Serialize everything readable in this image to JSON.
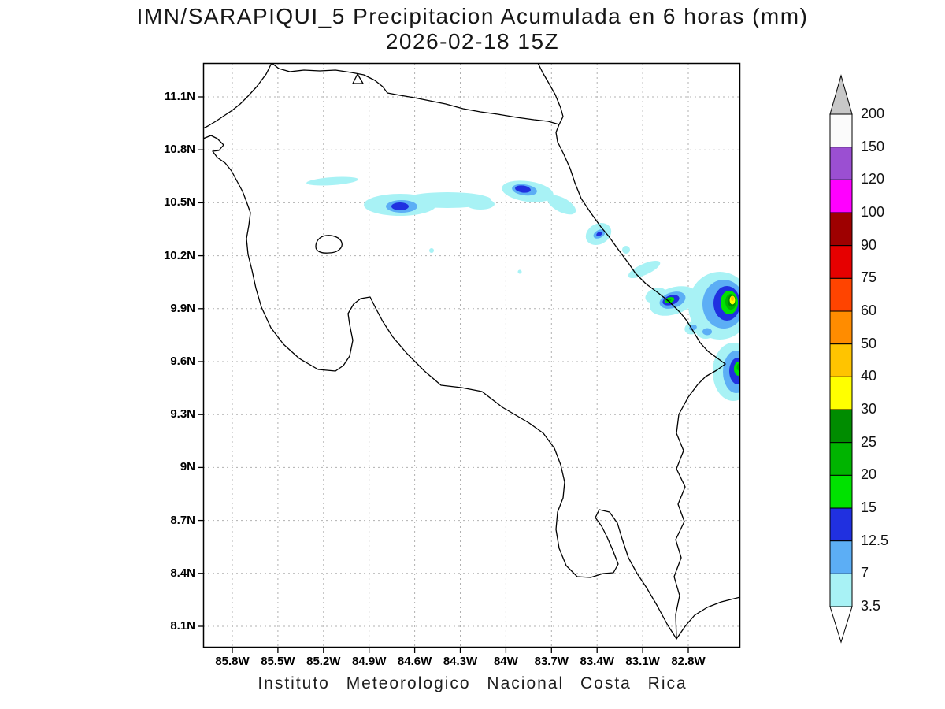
{
  "title": {
    "line1": "IMN/SARAPIQUI_5 Precipitacion Acumulada en 6 horas (mm)",
    "line2": "2026-02-18 15Z"
  },
  "caption": "Instituto Meteorologico Nacional Costa Rica",
  "map": {
    "y_ticks": [
      "11.1N",
      "10.8N",
      "10.5N",
      "10.2N",
      "9.9N",
      "9.6N",
      "9.3N",
      "9N",
      "8.7N",
      "8.4N",
      "8.1N"
    ],
    "x_ticks": [
      "85.8W",
      "85.5W",
      "85.2W",
      "84.9W",
      "84.6W",
      "84.3W",
      "84W",
      "83.7W",
      "83.4W",
      "83.1W",
      "82.8W"
    ]
  },
  "colorbar": {
    "tick_labels_top_to_bottom": [
      "200",
      "150",
      "120",
      "100",
      "90",
      "75",
      "60",
      "50",
      "40",
      "30",
      "25",
      "20",
      "15",
      "12.5",
      "7",
      "3.5"
    ],
    "segment_colors_top_to_bottom": [
      "#fbfbfb",
      "#9b4fd2",
      "#ff00ff",
      "#9e0000",
      "#e60000",
      "#ff4400",
      "#ff8c00",
      "#ffc400",
      "#ffff00",
      "#008c00",
      "#00b400",
      "#00e200",
      "#2030e0",
      "#5caef5",
      "#a8f2f5"
    ],
    "over_color": "#c8c8c8",
    "under_color": "#ffffff"
  },
  "chart_data": {
    "type": "filled-contour-map",
    "title": "IMN/SARAPIQUI_5 Precipitacion Acumulada en 6 horas (mm)",
    "valid_time": "2026-02-18 15Z",
    "units": "mm",
    "lon_extent_deg_w": [
      86.0,
      82.45
    ],
    "lat_extent_deg_n": [
      7.97,
      11.29
    ],
    "tick_spacing_deg": 0.3,
    "contour_levels_mm": [
      3.5,
      7,
      12.5,
      15,
      20,
      25,
      30,
      40,
      50,
      60,
      75,
      90,
      100,
      120,
      150,
      200
    ],
    "features": [
      {
        "location": "10.5N 84.6W elongated band",
        "peak_bin_mm": "12.5-15"
      },
      {
        "location": "10.55N 84.05W cell",
        "peak_bin_mm": "12.5-15"
      },
      {
        "location": "Caribbean coast 10.3N 83.45W",
        "peak_bin_mm": "12.5-15"
      },
      {
        "location": "9.95N 82.95W coastal cluster",
        "peak_bin_mm": "20-25"
      },
      {
        "location": "9.9N 82.5W east edge cluster",
        "peak_bin_mm": "40-50"
      },
      {
        "location": "9.55N 82.5W east edge cell",
        "peak_bin_mm": "20-25"
      }
    ]
  }
}
